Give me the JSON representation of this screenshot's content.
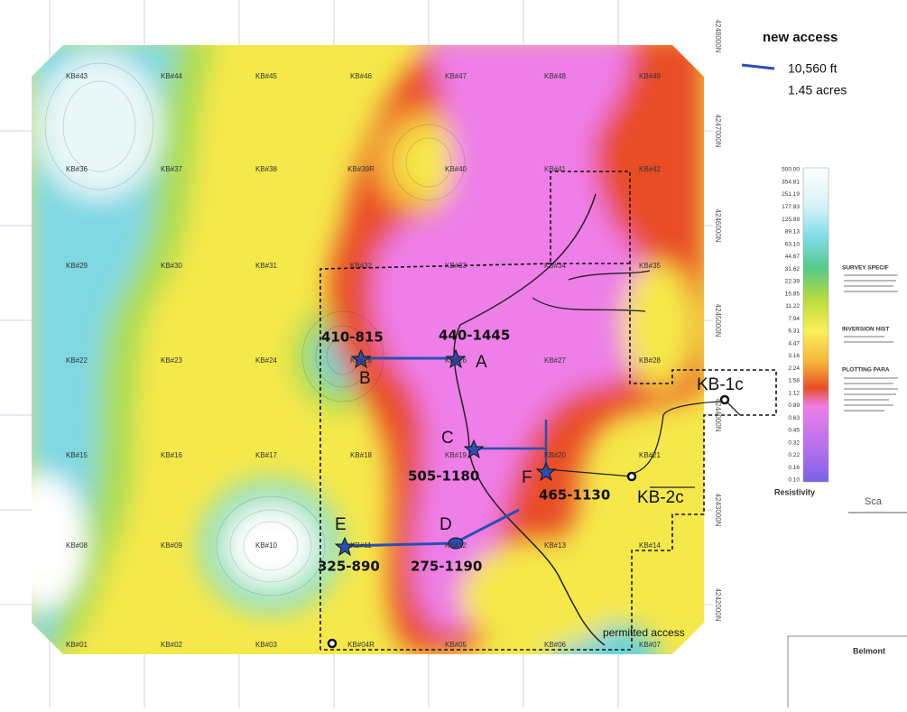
{
  "legend": {
    "title": "new access",
    "length": "10,560 ft",
    "area": "1.45 acres"
  },
  "colorbar": {
    "title": "Resistivity",
    "values": [
      "500.00",
      "354.81",
      "251.19",
      "177.83",
      "125.89",
      "89.13",
      "63.10",
      "44.67",
      "31.62",
      "22.39",
      "15.85",
      "11.22",
      "7.94",
      "6.31",
      "4.47",
      "3.16",
      "2.24",
      "1.58",
      "1.12",
      "0.89",
      "0.63",
      "0.45",
      "0.32",
      "0.22",
      "0.16",
      "0.10"
    ]
  },
  "side_notes": [
    "SURVEY SPECIF",
    "INVERSION HIST",
    "PLOTTING PARA"
  ],
  "scale_label": "Sca",
  "title_block": "Belmont",
  "northings": [
    "4248000N",
    "4247000N",
    "4246000N",
    "4245000N",
    "4244000N",
    "4243000N",
    "4242000N"
  ],
  "stations": [
    [
      "KB#43",
      "KB#44",
      "KB#45",
      "KB#46",
      "KB#47",
      "KB#48",
      "KB#49"
    ],
    [
      "KB#36",
      "KB#37",
      "KB#38",
      "KB#39R",
      "KB#40",
      "KB#41",
      "KB#42"
    ],
    [
      "KB#29",
      "KB#30",
      "KB#31",
      "KB#32",
      "KB#33",
      "KB#34",
      "KB#35"
    ],
    [
      "KB#22",
      "KB#23",
      "KB#24",
      "KB#25",
      "KB#26",
      "KB#27",
      "KB#28"
    ],
    [
      "KB#15",
      "KB#16",
      "KB#17",
      "KB#18",
      "KB#19",
      "KB#20",
      "KB#21"
    ],
    [
      "KB#08",
      "KB#09",
      "KB#10",
      "KB#11",
      "KB#12",
      "KB#13",
      "KB#14"
    ],
    [
      "KB#01",
      "KB#02",
      "KB#03",
      "KB#04R",
      "KB#05",
      "KB#06",
      "KB#07"
    ]
  ],
  "sites": {
    "B": {
      "name": "B",
      "range": "410-815"
    },
    "A": {
      "name": "A",
      "range": "440-1445"
    },
    "C": {
      "name": "C",
      "range": "505-1180"
    },
    "F": {
      "name": "F",
      "range": "465-1130"
    },
    "E": {
      "name": "E",
      "range": "325-890"
    },
    "D": {
      "name": "D",
      "range": "275-1190"
    }
  },
  "wells": [
    "KB-1c",
    "KB-2c"
  ],
  "route_label": "permitted access"
}
